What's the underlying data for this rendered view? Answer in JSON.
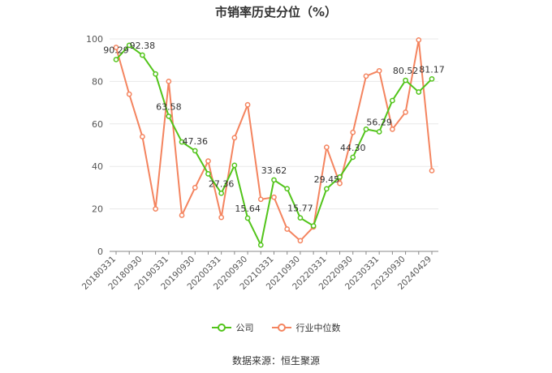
{
  "colors": {
    "company": "#52c41a",
    "industry": "#f4845f",
    "grid": "#e8e8e8",
    "axis": "#888888",
    "text": "#555555"
  },
  "chart_data": {
    "type": "line",
    "title": "市销率历史分位（%）",
    "source": "数据来源：恒生聚源",
    "ylim": [
      0,
      100
    ],
    "yticks": [
      0,
      20,
      40,
      60,
      80,
      100
    ],
    "grid": true,
    "legend_position": "bottom-center",
    "x_tick_labels": [
      "20180331",
      "20180930",
      "20190331",
      "20190930",
      "20200331",
      "20200930",
      "20210331",
      "20210930",
      "20220331",
      "20220930",
      "20230331",
      "20230930",
      "20240429"
    ],
    "x": [
      "20180331",
      "20180630",
      "20180930",
      "20181231",
      "20190331",
      "20190630",
      "20190930",
      "20191231",
      "20200331",
      "20200630",
      "20200930",
      "20201231",
      "20210331",
      "20210630",
      "20210930",
      "20211231",
      "20220331",
      "20220630",
      "20220930",
      "20221231",
      "20230331",
      "20230630",
      "20230930",
      "20231231",
      "20240429"
    ],
    "series": [
      {
        "name": "公司",
        "values": [
          90.29,
          97.0,
          92.38,
          83.5,
          63.58,
          51.5,
          47.36,
          36.5,
          27.36,
          40.5,
          15.64,
          3.0,
          33.62,
          29.5,
          15.77,
          12.0,
          29.45,
          35.0,
          44.3,
          57.5,
          56.29,
          71.0,
          80.52,
          75.0,
          81.17
        ]
      },
      {
        "name": "行业中位数",
        "values": [
          96.0,
          74.0,
          54.0,
          20.0,
          80.0,
          17.0,
          30.0,
          42.5,
          16.0,
          53.5,
          69.0,
          24.5,
          25.5,
          10.5,
          5.0,
          11.5,
          49.0,
          32.0,
          56.0,
          82.5,
          85.0,
          57.5,
          65.5,
          99.5,
          38.0
        ]
      }
    ],
    "data_labels": [
      {
        "index": 0,
        "text": "90.29"
      },
      {
        "index": 2,
        "text": "92.38"
      },
      {
        "index": 4,
        "text": "63.58"
      },
      {
        "index": 6,
        "text": "47.36"
      },
      {
        "index": 8,
        "text": "27.36"
      },
      {
        "index": 10,
        "text": "15.64"
      },
      {
        "index": 12,
        "text": "33.62"
      },
      {
        "index": 14,
        "text": "15.77"
      },
      {
        "index": 16,
        "text": "29.45"
      },
      {
        "index": 18,
        "text": "44.30"
      },
      {
        "index": 20,
        "text": "56.29"
      },
      {
        "index": 22,
        "text": "80.52"
      },
      {
        "index": 24,
        "text": "81.17"
      }
    ]
  }
}
